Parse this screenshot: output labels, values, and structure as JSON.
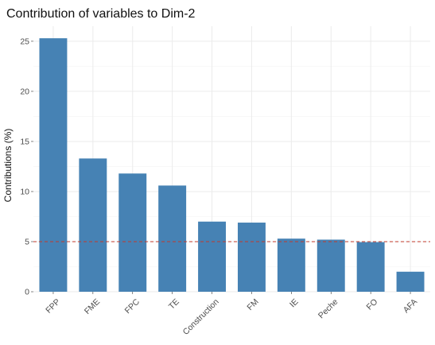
{
  "chart_data": {
    "type": "bar",
    "title": "Contribution of variables to Dim-2",
    "xlabel": "",
    "ylabel": "Contributions (%)",
    "categories": [
      "FPP",
      "FME",
      "FPC",
      "TE",
      "Construction",
      "FM",
      "IE",
      "Peche",
      "FO",
      "AFA"
    ],
    "values": [
      25.3,
      13.3,
      11.8,
      10.6,
      7.0,
      6.9,
      5.3,
      5.2,
      4.95,
      2.0
    ],
    "ylim": [
      0,
      26.5
    ],
    "yticks": [
      0,
      5,
      10,
      15,
      20,
      25
    ],
    "reference_line": {
      "value": 5,
      "style": "dashed",
      "color": "#c0392b"
    },
    "grid": true,
    "bar_color": "#4682b4"
  }
}
